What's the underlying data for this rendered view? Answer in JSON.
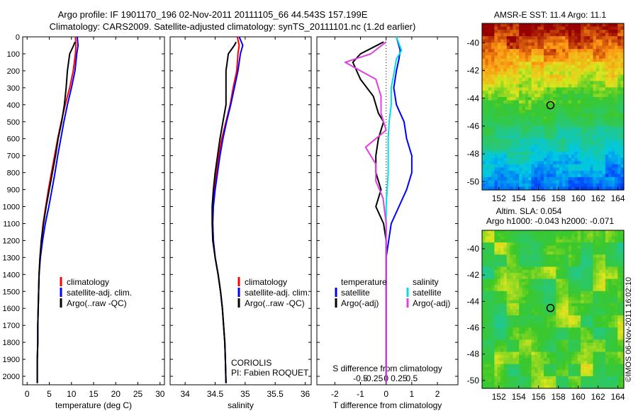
{
  "header": {
    "title_line1": "Argo profile: IF 1901170_196 02-Nov-2011 20111105_66 44.543S 157.199E",
    "title_line2": "Climatology: CARS2009. Satellite-adjusted climatology: synTS_20111101.nc (1.2d earlier)"
  },
  "colors": {
    "climatology": "#ff0000",
    "satellite": "#0000ff",
    "argo": "#000000",
    "sal_satellite": "#00e0e0",
    "sal_argo": "#e040e0"
  },
  "depth_axis": {
    "ylim": [
      0,
      2050
    ],
    "ticks": [
      "0",
      "100",
      "200",
      "300",
      "400",
      "500",
      "600",
      "700",
      "800",
      "900",
      "1000",
      "1100",
      "1200",
      "1300",
      "1400",
      "1500",
      "1600",
      "1700",
      "1800",
      "1900",
      "2000"
    ]
  },
  "chart_data": [
    {
      "type": "line",
      "id": "temperature",
      "xlabel": "temperature (deg C)",
      "xlim": [
        -1,
        31
      ],
      "xticks": [
        "0",
        "5",
        "10",
        "15",
        "20",
        "25",
        "30"
      ],
      "legend": [
        "climatology",
        "satellite-adj. clim.",
        "Argo(..raw -QC)"
      ],
      "series": [
        {
          "name": "climatology",
          "x": [
            10.9,
            11.0,
            10.9,
            10.4,
            9.6,
            8.6,
            7.7,
            6.9,
            6.2,
            5.5,
            4.8,
            4.2,
            3.6,
            3.2,
            2.9,
            2.7,
            2.6,
            2.5,
            2.4,
            2.4,
            2.3,
            2.3
          ],
          "y": [
            0,
            50,
            100,
            200,
            300,
            400,
            500,
            600,
            700,
            800,
            900,
            1000,
            1100,
            1200,
            1300,
            1400,
            1500,
            1600,
            1700,
            1800,
            1900,
            2040
          ]
        },
        {
          "name": "satellite-adj. clim.",
          "x": [
            11.3,
            11.5,
            11.2,
            10.8,
            10.0,
            9.1,
            8.3,
            7.6,
            6.9,
            6.3,
            5.6,
            4.9,
            4.1,
            3.5,
            3.0,
            2.7,
            2.6,
            2.5,
            2.4,
            2.4,
            2.3,
            2.3
          ],
          "y": [
            0,
            50,
            100,
            200,
            300,
            400,
            500,
            600,
            700,
            800,
            900,
            1000,
            1100,
            1200,
            1300,
            1400,
            1500,
            1600,
            1700,
            1800,
            1900,
            2040
          ]
        },
        {
          "name": "Argo(..raw -QC)",
          "x": [
            10.8,
            10.5,
            9.6,
            9.1,
            8.8,
            8.4,
            7.8,
            7.0,
            6.4,
            5.7,
            5.0,
            4.3,
            3.7,
            3.2,
            2.9,
            2.7,
            2.6,
            2.5,
            2.4,
            2.4,
            2.3,
            2.3
          ],
          "y": [
            30,
            50,
            100,
            200,
            300,
            400,
            500,
            600,
            700,
            800,
            900,
            1000,
            1100,
            1200,
            1300,
            1400,
            1500,
            1600,
            1700,
            1800,
            1900,
            2040
          ]
        }
      ]
    },
    {
      "type": "line",
      "id": "salinity",
      "xlabel": "salinity",
      "xlim": [
        33.75,
        36.1
      ],
      "xticks": [
        "34",
        "34.5",
        "35",
        "35.5",
        "36"
      ],
      "legend": [
        "climatology",
        "satellite-adj. clim.",
        "Argo(..raw -QC)"
      ],
      "annotation": [
        "CORIOLIS",
        "PI: Fabien ROQUET"
      ],
      "series": [
        {
          "name": "climatology",
          "x": [
            34.87,
            34.9,
            34.88,
            34.86,
            34.8,
            34.75,
            34.68,
            34.61,
            34.56,
            34.52,
            34.48,
            34.46,
            34.46,
            34.47,
            34.5,
            34.55,
            34.59,
            34.62,
            34.64,
            34.66,
            34.67,
            34.68
          ],
          "y": [
            0,
            50,
            100,
            200,
            300,
            400,
            500,
            600,
            700,
            800,
            900,
            1000,
            1100,
            1200,
            1300,
            1400,
            1500,
            1600,
            1700,
            1800,
            1900,
            2040
          ]
        },
        {
          "name": "satellite-adj. clim.",
          "x": [
            34.9,
            34.96,
            34.92,
            34.88,
            34.82,
            34.76,
            34.69,
            34.63,
            34.58,
            34.54,
            34.5,
            34.47,
            34.46,
            34.47,
            34.5,
            34.55,
            34.59,
            34.62,
            34.64,
            34.66,
            34.67,
            34.68
          ],
          "y": [
            0,
            50,
            100,
            200,
            300,
            400,
            500,
            600,
            700,
            800,
            900,
            1000,
            1100,
            1200,
            1300,
            1400,
            1500,
            1600,
            1700,
            1800,
            1900,
            2040
          ]
        },
        {
          "name": "Argo(..raw -QC)",
          "x": [
            34.85,
            34.82,
            34.72,
            34.68,
            34.68,
            34.68,
            34.63,
            34.58,
            34.54,
            34.5,
            34.47,
            34.45,
            34.45,
            34.46,
            34.5,
            34.55,
            34.59,
            34.62,
            34.64,
            34.66,
            34.67,
            34.68
          ],
          "y": [
            30,
            50,
            100,
            200,
            300,
            400,
            500,
            600,
            700,
            800,
            900,
            1000,
            1100,
            1200,
            1300,
            1400,
            1500,
            1600,
            1700,
            1800,
            1900,
            2040
          ]
        }
      ]
    },
    {
      "type": "line",
      "id": "difference",
      "xlabel": "T difference from climatology",
      "xlabel_top": "S difference from climatology",
      "xlim": [
        -2.7,
        2.8
      ],
      "xticks": [
        "-2",
        "-1",
        "0",
        "1",
        "2"
      ],
      "xticks_salinity": [
        "-0.5",
        "-0.25",
        "0",
        "0.25",
        "0.5"
      ],
      "legend_temperature_title": "temperature",
      "legend_salinity_title": "salinity",
      "legend_temperature": [
        "satellite",
        "Argo(-adj)"
      ],
      "legend_salinity": [
        "satellite",
        "Argo(-adj)"
      ],
      "series": [
        {
          "name": "T satellite",
          "x": [
            0.4,
            0.55,
            0.5,
            0.4,
            0.3,
            0.4,
            0.7,
            0.8,
            1.0,
            1.0,
            0.8,
            0.5,
            0.2,
            0.1,
            0.0,
            0.0,
            0.0,
            0.0,
            0.0,
            0.0,
            0.0
          ],
          "y": [
            0,
            80,
            130,
            200,
            300,
            400,
            500,
            600,
            700,
            800,
            900,
            1000,
            1100,
            1200,
            1300,
            1400,
            1500,
            1600,
            1700,
            1800,
            2040
          ]
        },
        {
          "name": "S satellite",
          "x": [
            0.1,
            0.15,
            0.1,
            0.08,
            0.05,
            0.05,
            0.03,
            0.02,
            0.02,
            0.02,
            0.01,
            0.0,
            0.0,
            0.0,
            0.0,
            0.0,
            0.0,
            0.0,
            0.0,
            0.0,
            0.0
          ],
          "y": [
            0,
            80,
            130,
            200,
            300,
            400,
            500,
            600,
            700,
            800,
            900,
            1000,
            1100,
            1200,
            1300,
            1400,
            1500,
            1600,
            1700,
            1800,
            2040
          ]
        },
        {
          "name": "T Argo(-adj)",
          "x": [
            -0.1,
            -1.0,
            -1.3,
            -1.0,
            -0.5,
            -0.3,
            -0.1,
            -0.3,
            -0.4,
            -0.4,
            -0.2,
            -0.4,
            -0.1,
            0.0,
            0.0,
            0.0,
            0.0,
            0.0,
            0.0,
            0.0,
            0.0
          ],
          "y": [
            30,
            100,
            150,
            250,
            350,
            450,
            500,
            600,
            700,
            800,
            900,
            1000,
            1100,
            1200,
            1300,
            1400,
            1500,
            1600,
            1700,
            1800,
            2040
          ]
        },
        {
          "name": "S Argo(-adj)",
          "x": [
            0.0,
            -0.15,
            -0.4,
            -0.1,
            -0.05,
            -0.05,
            0.0,
            -0.2,
            -0.1,
            -0.1,
            -0.03,
            -0.02,
            0.0,
            0.0,
            0.0,
            0.0,
            0.0,
            0.0,
            0.0,
            0.0,
            0.0
          ],
          "y": [
            30,
            100,
            150,
            250,
            350,
            450,
            550,
            650,
            750,
            850,
            950,
            1000,
            1100,
            1200,
            1300,
            1400,
            1500,
            1600,
            1700,
            1800,
            2040
          ]
        }
      ]
    }
  ],
  "sst_map": {
    "title": "AMSR-E SST: 11.4  Argo: 11.1",
    "yticks": [
      "-40",
      "-42",
      "-44",
      "-46",
      "-48",
      "-50"
    ],
    "xticks": [
      "152",
      "154",
      "156",
      "158",
      "160",
      "162",
      "164"
    ],
    "marker": {
      "lon": 157.2,
      "lat": -44.5
    }
  },
  "sla_map": {
    "title_line1": "Altim. SLA: 0.054",
    "title_line2": "Argo h1000: -0.043 h2000: -0.071",
    "yticks": [
      "-40",
      "-42",
      "-44",
      "-46",
      "-48",
      "-50"
    ],
    "xticks": [
      "152",
      "154",
      "156",
      "158",
      "160",
      "162",
      "164"
    ],
    "marker": {
      "lon": 157.2,
      "lat": -44.5
    }
  },
  "footer": {
    "credit": "©IMOS 06-Nov-2011 16:02:10"
  }
}
